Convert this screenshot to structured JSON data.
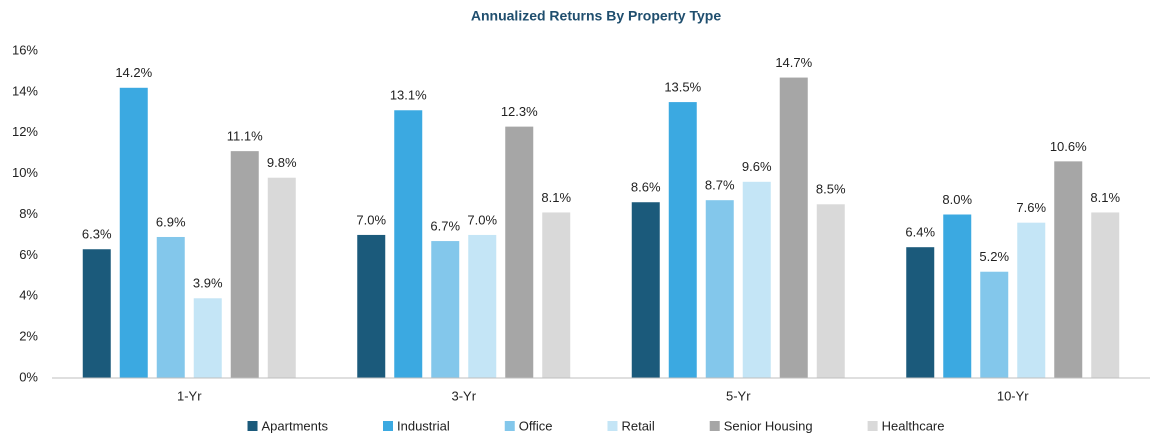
{
  "chart_data": {
    "type": "bar",
    "title": "Annualized Returns By Property Type",
    "categories": [
      "1-Yr",
      "3-Yr",
      "5-Yr",
      "10-Yr"
    ],
    "series": [
      {
        "name": "Apartments",
        "color": "#1b5a7b",
        "values": [
          6.3,
          7.0,
          8.6,
          6.4
        ],
        "value_labels": [
          "6.3%",
          "7.0%",
          "8.6%",
          "6.4%"
        ]
      },
      {
        "name": "Industrial",
        "color": "#3ba9e1",
        "values": [
          14.2,
          13.1,
          13.5,
          8.0
        ],
        "value_labels": [
          "14.2%",
          "13.1%",
          "13.5%",
          "8.0%"
        ]
      },
      {
        "name": "Office",
        "color": "#83c7eb",
        "values": [
          6.9,
          6.7,
          8.7,
          5.2
        ],
        "value_labels": [
          "6.9%",
          "6.7%",
          "8.7%",
          "5.2%"
        ]
      },
      {
        "name": "Retail",
        "color": "#c4e5f6",
        "values": [
          3.9,
          7.0,
          9.6,
          7.6
        ],
        "value_labels": [
          "3.9%",
          "7.0%",
          "9.6%",
          "7.6%"
        ]
      },
      {
        "name": "Senior Housing",
        "color": "#a6a6a6",
        "values": [
          11.1,
          12.3,
          14.7,
          10.6
        ],
        "value_labels": [
          "11.1%",
          "12.3%",
          "14.7%",
          "10.6%"
        ]
      },
      {
        "name": "Healthcare",
        "color": "#d9d9d9",
        "values": [
          9.8,
          8.1,
          8.5,
          8.1
        ],
        "value_labels": [
          "9.8%",
          "8.1%",
          "8.5%",
          "8.1%"
        ]
      }
    ],
    "ylim": [
      0,
      16
    ],
    "yticks": [
      {
        "value": 0,
        "label": "0%"
      },
      {
        "value": 2,
        "label": "2%"
      },
      {
        "value": 4,
        "label": "4%"
      },
      {
        "value": 6,
        "label": "6%"
      },
      {
        "value": 8,
        "label": "8%"
      },
      {
        "value": 10,
        "label": "10%"
      },
      {
        "value": 12,
        "label": "12%"
      },
      {
        "value": 14,
        "label": "14%"
      },
      {
        "value": 16,
        "label": "16%"
      }
    ],
    "grid": false,
    "legend": "bottom"
  }
}
